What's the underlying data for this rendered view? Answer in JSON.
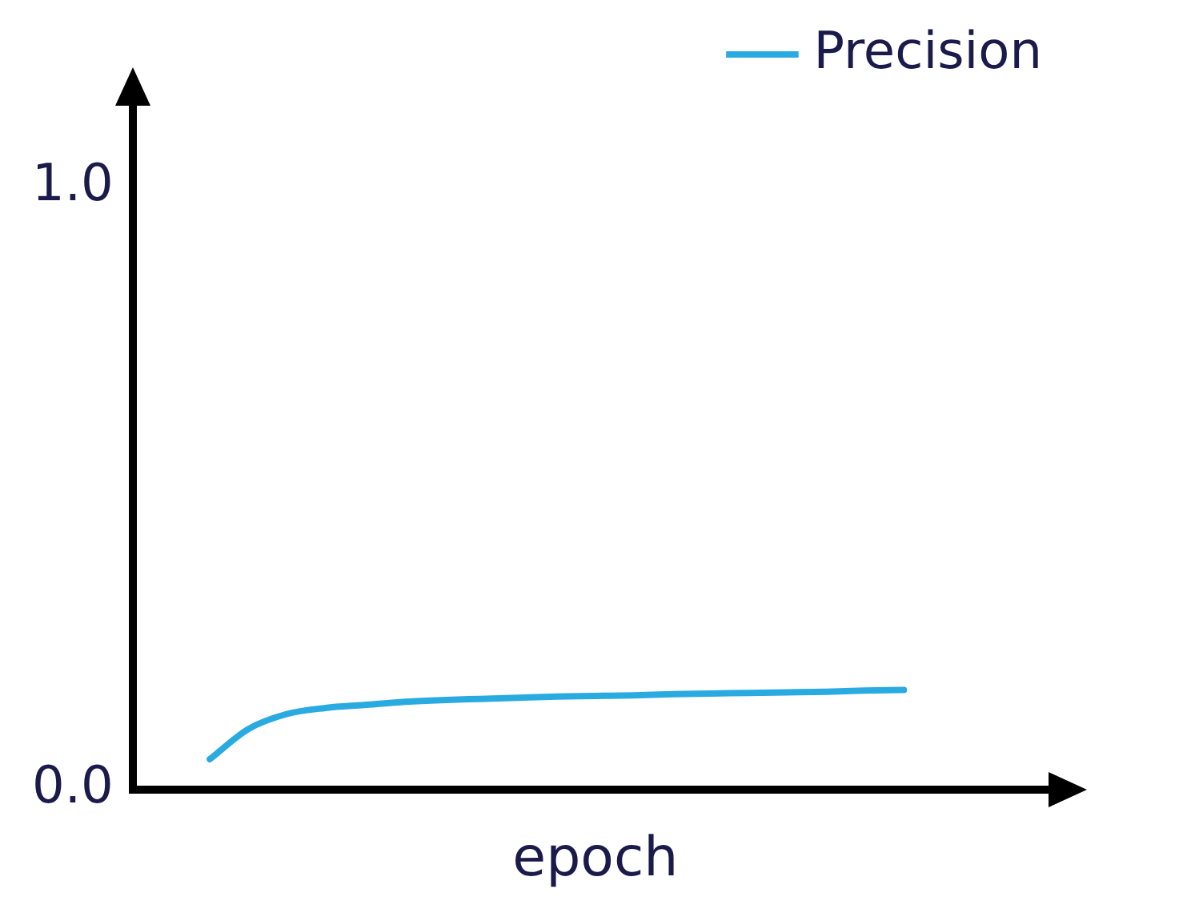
{
  "chart_data": {
    "type": "line",
    "xlabel": "epoch",
    "categories": [
      null,
      null,
      null,
      null,
      null,
      null,
      null,
      null,
      null,
      null,
      null,
      null,
      null,
      null,
      null,
      null,
      null,
      null,
      null,
      null,
      null,
      null,
      null,
      null,
      null
    ],
    "series": [
      {
        "name": "Precision",
        "color": "#29abe2",
        "values": [
          null,
          null,
          0.05,
          0.1,
          0.125,
          0.135,
          0.14,
          0.145,
          0.148,
          0.15,
          0.152,
          0.154,
          0.155,
          0.156,
          0.158,
          0.159,
          0.16,
          0.161,
          0.162,
          0.164,
          0.165,
          null,
          null,
          null,
          null
        ]
      }
    ],
    "ylim": [
      0,
      1.15
    ],
    "yticks": [
      {
        "value": 0,
        "label": "0.0"
      },
      {
        "value": 1,
        "label": "1.0"
      }
    ],
    "grid": false,
    "legend": "top right",
    "marker": "none",
    "line_style": "solid"
  }
}
